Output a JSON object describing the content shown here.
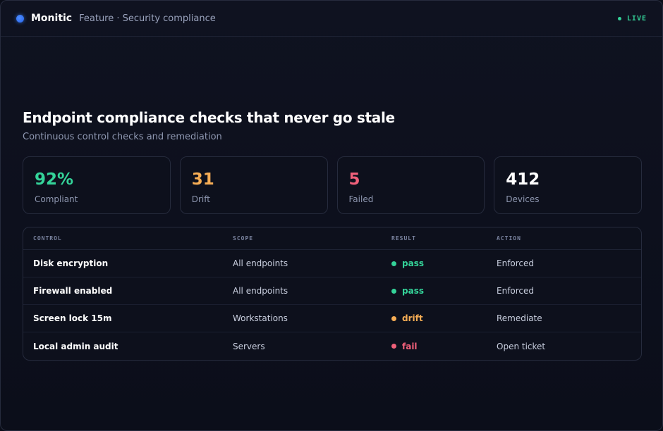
{
  "header": {
    "brand": "Monitic",
    "breadcrumb": "Feature · Security compliance",
    "live_label": "LIVE",
    "live_color": "#34d399"
  },
  "hero": {
    "title": "Endpoint compliance checks that never go stale",
    "subtitle": "Continuous control checks and remediation"
  },
  "stats": [
    {
      "value": "92%",
      "label": "Compliant",
      "color": "#34d399"
    },
    {
      "value": "31",
      "label": "Drift",
      "color": "#f6ad55"
    },
    {
      "value": "5",
      "label": "Failed",
      "color": "#f0607a"
    },
    {
      "value": "412",
      "label": "Devices",
      "color": "#ffffff"
    }
  ],
  "table": {
    "columns": [
      "CONTROL",
      "SCOPE",
      "RESULT",
      "ACTION"
    ],
    "rows": [
      {
        "control": "Disk encryption",
        "scope": "All endpoints",
        "result": "pass",
        "result_color": "#34d399",
        "action": "Enforced"
      },
      {
        "control": "Firewall enabled",
        "scope": "All endpoints",
        "result": "pass",
        "result_color": "#34d399",
        "action": "Enforced"
      },
      {
        "control": "Screen lock 15m",
        "scope": "Workstations",
        "result": "drift",
        "result_color": "#f6ad55",
        "action": "Remediate"
      },
      {
        "control": "Local admin audit",
        "scope": "Servers",
        "result": "fail",
        "result_color": "#f0607a",
        "action": "Open ticket"
      }
    ]
  }
}
